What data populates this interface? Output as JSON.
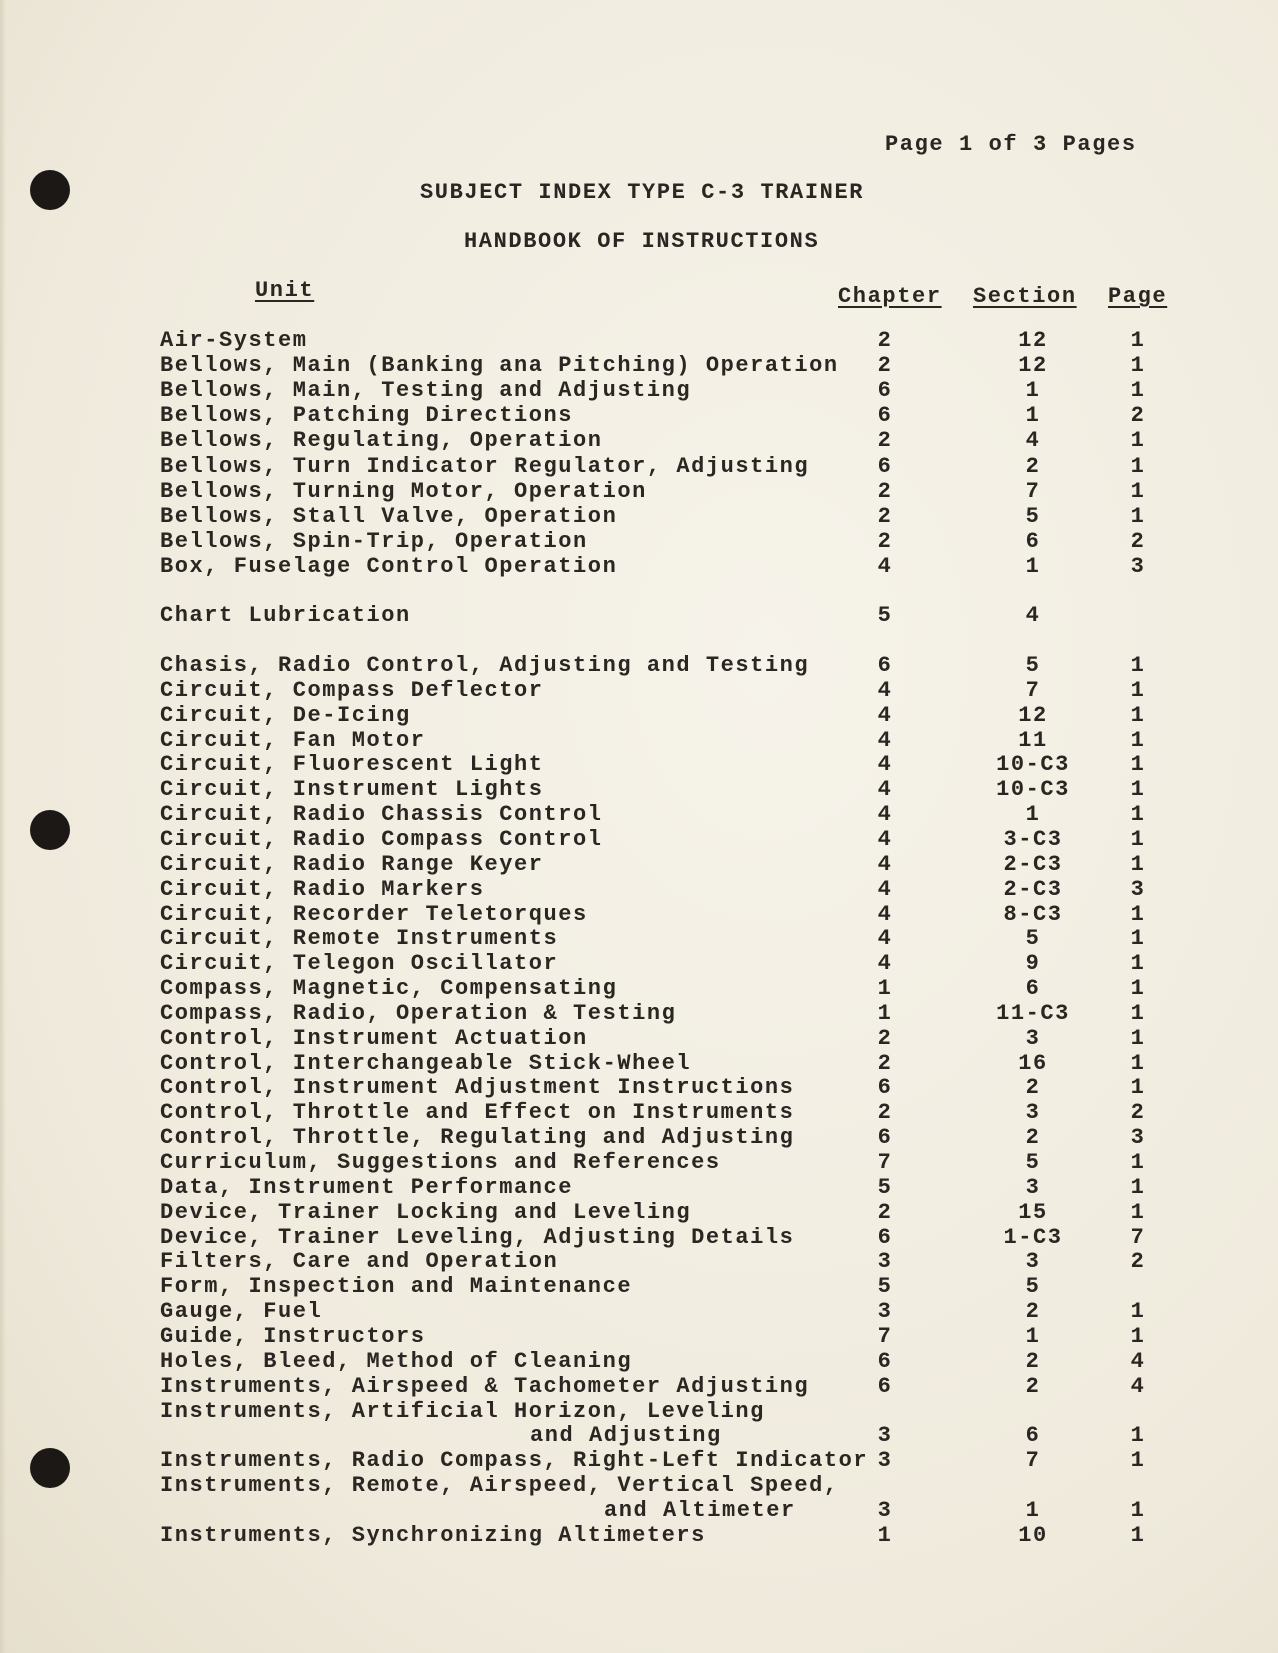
{
  "header": {
    "page_info": "Page 1 of 3 Pages",
    "title": "SUBJECT INDEX TYPE C-3 TRAINER",
    "subtitle": "HANDBOOK OF INSTRUCTIONS"
  },
  "columns": {
    "unit": "Unit",
    "chapter": "Chapter",
    "section": "Section",
    "page": "Page"
  },
  "groups": [
    {
      "entries": [
        {
          "unit": [
            "Air-System"
          ],
          "chapter": "2",
          "section": "12",
          "page": "1"
        },
        {
          "unit": [
            "Bellows, Main (Banking ana Pitching) Operation"
          ],
          "chapter": "2",
          "section": "12",
          "page": "1"
        },
        {
          "unit": [
            "Bellows, Main, Testing and Adjusting"
          ],
          "chapter": "6",
          "section": "1",
          "page": "1"
        },
        {
          "unit": [
            "Bellows, Patching Directions"
          ],
          "chapter": "6",
          "section": "1",
          "page": "2"
        },
        {
          "unit": [
            "Bellows, Regulating, Operation"
          ],
          "chapter": "2",
          "section": "4",
          "page": "1"
        },
        {
          "unit": [
            "Bellows, Turn Indicator Regulator, Adjusting"
          ],
          "chapter": "6",
          "section": "2",
          "page": "1"
        },
        {
          "unit": [
            "Bellows, Turning Motor, Operation"
          ],
          "chapter": "2",
          "section": "7",
          "page": "1"
        },
        {
          "unit": [
            "Bellows, Stall Valve, Operation"
          ],
          "chapter": "2",
          "section": "5",
          "page": "1"
        },
        {
          "unit": [
            "Bellows, Spin-Trip, Operation"
          ],
          "chapter": "2",
          "section": "6",
          "page": "2"
        },
        {
          "unit": [
            "Box, Fuselage Control Operation"
          ],
          "chapter": "4",
          "section": "1",
          "page": "3"
        }
      ]
    },
    {
      "entries": [
        {
          "unit": [
            "Chart Lubrication"
          ],
          "chapter": "5",
          "section": "4",
          "page": ""
        }
      ]
    },
    {
      "entries": [
        {
          "unit": [
            "Chasis, Radio Control, Adjusting and Testing"
          ],
          "chapter": "6",
          "section": "5",
          "page": "1"
        },
        {
          "unit": [
            "Circuit, Compass Deflector"
          ],
          "chapter": "4",
          "section": "7",
          "page": "1"
        },
        {
          "unit": [
            "Circuit, De-Icing"
          ],
          "chapter": "4",
          "section": "12",
          "page": "1"
        },
        {
          "unit": [
            "Circuit, Fan Motor"
          ],
          "chapter": "4",
          "section": "11",
          "page": "1"
        },
        {
          "unit": [
            "Circuit, Fluorescent Light"
          ],
          "chapter": "4",
          "section": "10-C3",
          "page": "1"
        },
        {
          "unit": [
            "Circuit, Instrument Lights"
          ],
          "chapter": "4",
          "section": "10-C3",
          "page": "1"
        },
        {
          "unit": [
            "Circuit, Radio Chassis Control"
          ],
          "chapter": "4",
          "section": "1",
          "page": "1"
        },
        {
          "unit": [
            "Circuit, Radio Compass Control"
          ],
          "chapter": "4",
          "section": "3-C3",
          "page": "1"
        },
        {
          "unit": [
            "Circuit, Radio Range Keyer"
          ],
          "chapter": "4",
          "section": "2-C3",
          "page": "1"
        },
        {
          "unit": [
            "Circuit, Radio Markers"
          ],
          "chapter": "4",
          "section": "2-C3",
          "page": "3"
        },
        {
          "unit": [
            "Circuit, Recorder Teletorques"
          ],
          "chapter": "4",
          "section": "8-C3",
          "page": "1"
        },
        {
          "unit": [
            "Circuit, Remote Instruments"
          ],
          "chapter": "4",
          "section": "5",
          "page": "1"
        },
        {
          "unit": [
            "Circuit, Telegon Oscillator"
          ],
          "chapter": "4",
          "section": "9",
          "page": "1"
        },
        {
          "unit": [
            "Compass, Magnetic, Compensating"
          ],
          "chapter": "1",
          "section": "6",
          "page": "1"
        },
        {
          "unit": [
            "Compass, Radio, Operation & Testing"
          ],
          "chapter": "1",
          "section": "11-C3",
          "page": "1"
        },
        {
          "unit": [
            "Control, Instrument Actuation"
          ],
          "chapter": "2",
          "section": "3",
          "page": "1"
        },
        {
          "unit": [
            "Control, Interchangeable Stick-Wheel"
          ],
          "chapter": "2",
          "section": "16",
          "page": "1"
        },
        {
          "unit": [
            "Control, Instrument Adjustment Instructions"
          ],
          "chapter": "6",
          "section": "2",
          "page": "1"
        },
        {
          "unit": [
            "Control, Throttle and Effect on Instruments"
          ],
          "chapter": "2",
          "section": "3",
          "page": "2"
        },
        {
          "unit": [
            "Control, Throttle, Regulating and Adjusting"
          ],
          "chapter": "6",
          "section": "2",
          "page": "3"
        },
        {
          "unit": [
            "Curriculum, Suggestions and References"
          ],
          "chapter": "7",
          "section": "5",
          "page": "1"
        },
        {
          "unit": [
            "Data, Instrument Performance"
          ],
          "chapter": "5",
          "section": "3",
          "page": "1"
        },
        {
          "unit": [
            "Device, Trainer Locking and Leveling"
          ],
          "chapter": "2",
          "section": "15",
          "page": "1"
        },
        {
          "unit": [
            "Device, Trainer Leveling, Adjusting Details"
          ],
          "chapter": "6",
          "section": "1-C3",
          "page": "7"
        },
        {
          "unit": [
            "Filters, Care and Operation"
          ],
          "chapter": "3",
          "section": "3",
          "page": "2"
        },
        {
          "unit": [
            "Form, Inspection and Maintenance"
          ],
          "chapter": "5",
          "section": "5",
          "page": ""
        },
        {
          "unit": [
            "Gauge, Fuel"
          ],
          "chapter": "3",
          "section": "2",
          "page": "1"
        },
        {
          "unit": [
            "Guide, Instructors"
          ],
          "chapter": "7",
          "section": "1",
          "page": "1"
        },
        {
          "unit": [
            "Holes, Bleed, Method of Cleaning"
          ],
          "chapter": "6",
          "section": "2",
          "page": "4"
        },
        {
          "unit": [
            "Instruments, Airspeed & Tachometer Adjusting"
          ],
          "chapter": "6",
          "section": "2",
          "page": "4"
        },
        {
          "unit": [
            "Instruments, Artificial Horizon, Leveling",
            "and Adjusting"
          ],
          "chapter": "3",
          "section": "6",
          "page": "1"
        },
        {
          "unit": [
            "Instruments, Radio Compass, Right-Left Indicator"
          ],
          "chapter": "3",
          "section": "7",
          "page": "1"
        },
        {
          "unit": [
            "Instruments, Remote, Airspeed, Vertical Speed,",
            "and Altimeter"
          ],
          "chapter": "3",
          "section": "1",
          "page": "1"
        },
        {
          "unit": [
            "Instruments, Synchronizing Altimeters"
          ],
          "chapter": "1",
          "section": "10",
          "page": "1"
        }
      ]
    }
  ]
}
